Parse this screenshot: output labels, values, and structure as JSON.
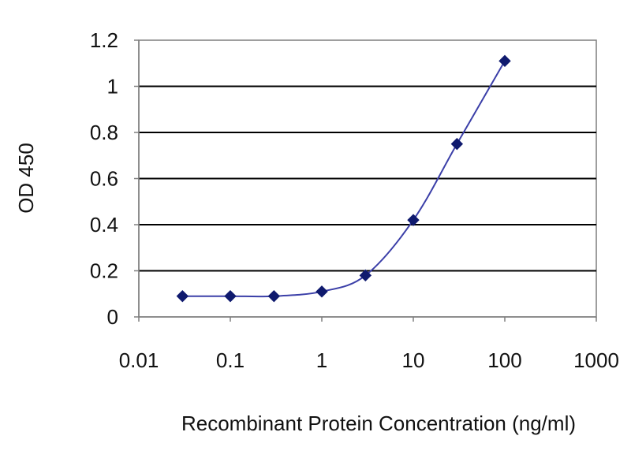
{
  "chart_data": {
    "type": "line",
    "title": "",
    "xlabel": "Recombinant Protein Concentration (ng/ml)",
    "ylabel": "OD 450",
    "x_scale": "log",
    "xlim": [
      0.01,
      1000
    ],
    "ylim": [
      0,
      1.2
    ],
    "x_ticks": [
      0.01,
      0.1,
      1,
      10,
      100,
      1000
    ],
    "x_tick_labels": [
      "0.01",
      "0.1",
      "1",
      "10",
      "100",
      "1000"
    ],
    "y_ticks": [
      0,
      0.2,
      0.4,
      0.6,
      0.8,
      1,
      1.2
    ],
    "y_tick_labels": [
      "0",
      "0.2",
      "0.4",
      "0.6",
      "0.8",
      "1",
      "1.2"
    ],
    "grid": "horizontal",
    "legend": "none",
    "series": [
      {
        "x": [
          0.03,
          0.1,
          0.3,
          1,
          3,
          10,
          30,
          100
        ],
        "y": [
          0.09,
          0.09,
          0.09,
          0.11,
          0.18,
          0.42,
          0.75,
          1.11
        ],
        "color": "#3b3fa8",
        "marker": "diamond",
        "marker_color": "#0f1a6e"
      }
    ],
    "colors": {
      "plot_background": "#ffffff",
      "gridline": "#000000",
      "axis": "#7f7f7f"
    }
  }
}
